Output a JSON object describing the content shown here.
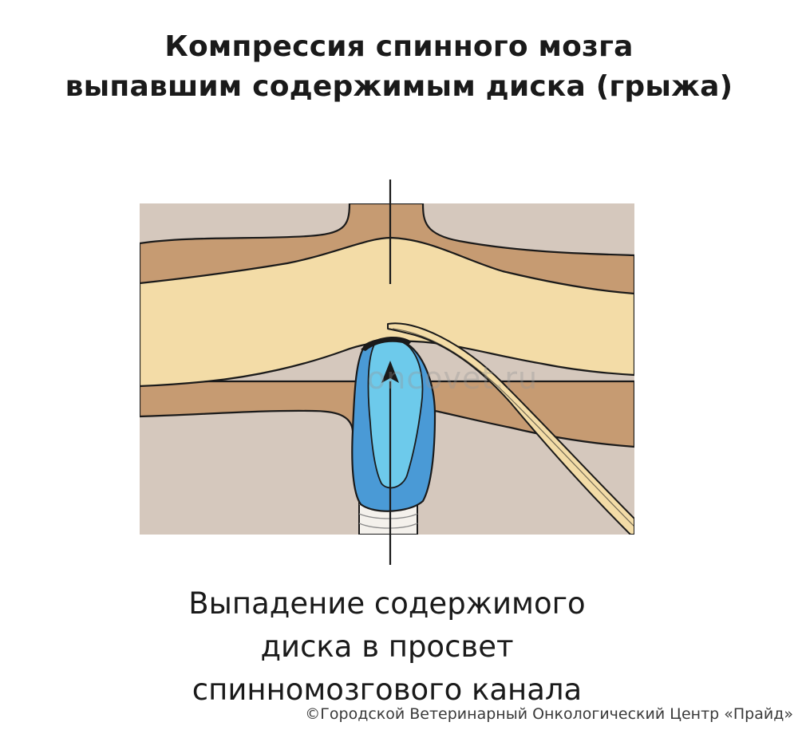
{
  "title": {
    "line1": "Компрессия спинного мозга",
    "line2": "выпавшим содержимым диска (грыжа)"
  },
  "caption": {
    "line1": "Выпадение содержимого",
    "line2": "диска в просвет",
    "line3": "спинномозгового канала"
  },
  "watermark": "oncovet.ru",
  "copyright": "©Городской Ветеринарный Онкологический Центр «Прайд»",
  "colors": {
    "background_tissue": "#d5c8bd",
    "vertebra_bone": "#c69b72",
    "spinal_cord": "#f3dca7",
    "disc_outer": "#4a9ad6",
    "disc_inner": "#6dcaeb",
    "outline": "#1a1a1a"
  }
}
